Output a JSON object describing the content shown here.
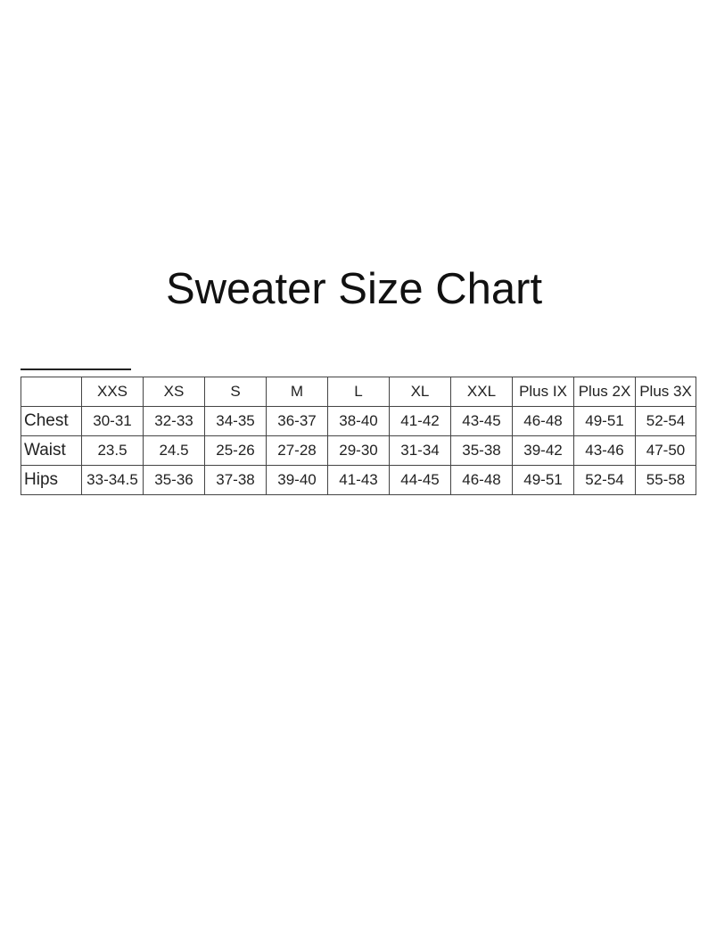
{
  "title": "Sweater Size Chart",
  "table": {
    "columns": [
      "",
      "XXS",
      "XS",
      "S",
      "M",
      "L",
      "XL",
      "XXL",
      "Plus IX",
      "Plus 2X",
      "Plus 3X"
    ],
    "rows": [
      {
        "label": "Chest",
        "values": [
          "30-31",
          "32-33",
          "34-35",
          "36-37",
          "38-40",
          "41-42",
          "43-45",
          "46-48",
          "49-51",
          "52-54"
        ]
      },
      {
        "label": "Waist",
        "values": [
          "23.5",
          "24.5",
          "25-26",
          "27-28",
          "29-30",
          "31-34",
          "35-38",
          "39-42",
          "43-46",
          "47-50"
        ]
      },
      {
        "label": "Hips",
        "values": [
          "33-34.5",
          "35-36",
          "37-38",
          "39-40",
          "41-43",
          "44-45",
          "46-48",
          "49-51",
          "52-54",
          "55-58"
        ]
      }
    ]
  }
}
